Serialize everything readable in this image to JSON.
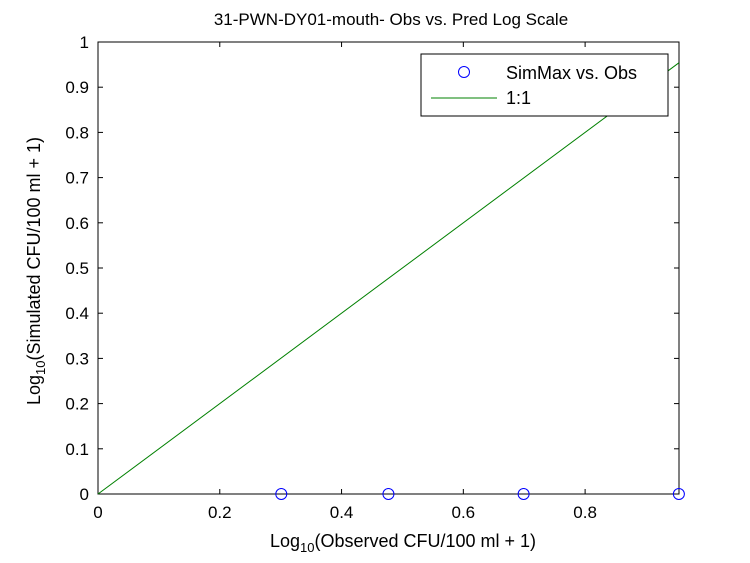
{
  "chart_data": {
    "type": "scatter",
    "title": "31-PWN-DY01-mouth- Obs vs. Pred Log Scale",
    "xlabel": {
      "prefix": "Log",
      "sub": "10",
      "rest": "(Observed CFU/100 ml + 1)"
    },
    "ylabel": {
      "prefix": "Log",
      "sub": "10",
      "rest": "(Simulated CFU/100 ml + 1)"
    },
    "xlim": [
      0,
      0.9542
    ],
    "ylim": [
      0,
      1
    ],
    "xticks": [
      0,
      0.2,
      0.4,
      0.6,
      0.8
    ],
    "xtick_labels": [
      "0",
      "0.2",
      "0.4",
      "0.6",
      "0.8"
    ],
    "yticks": [
      0,
      0.1,
      0.2,
      0.3,
      0.4,
      0.5,
      0.6,
      0.7,
      0.8,
      0.9,
      1
    ],
    "ytick_labels": [
      "0",
      "0.1",
      "0.2",
      "0.3",
      "0.4",
      "0.5",
      "0.6",
      "0.7",
      "0.8",
      "0.9",
      "1"
    ],
    "grid": false,
    "legend_position": "top-right",
    "series": [
      {
        "name": "SimMax vs. Obs",
        "kind": "scatter",
        "marker": "circle",
        "color": "#0000ff",
        "x": [
          0.301,
          0.477,
          0.699,
          0.954
        ],
        "y": [
          0,
          0,
          0,
          0
        ]
      },
      {
        "name": "1:1",
        "kind": "line",
        "color": "#008000",
        "x": [
          0,
          0.954
        ],
        "y": [
          0,
          0.954
        ]
      }
    ]
  }
}
